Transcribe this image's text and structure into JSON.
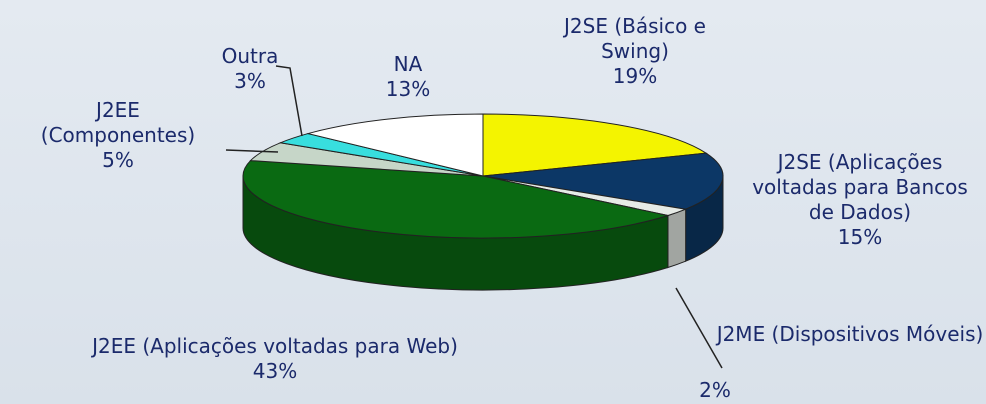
{
  "chart_data": {
    "type": "pie3d",
    "categories": [
      "J2SE (Básico e Swing)",
      "J2SE (Aplicações voltadas para Bancos de Dados)",
      "J2ME (Dispositivos Móveis)",
      "J2EE (Aplicações voltadas para Web)",
      "J2EE (Componentes)",
      "Outra",
      "NA"
    ],
    "values": [
      19,
      15,
      2,
      43,
      5,
      3,
      13
    ],
    "value_labels": [
      "19%",
      "15%",
      "2%",
      "43%",
      "5%",
      "3%",
      "13%"
    ],
    "colors": [
      "#f4f400",
      "#0c3766",
      "#e6ebe6",
      "#0a6a12",
      "#c6d6c8",
      "#38dede",
      "#ffffff"
    ]
  }
}
